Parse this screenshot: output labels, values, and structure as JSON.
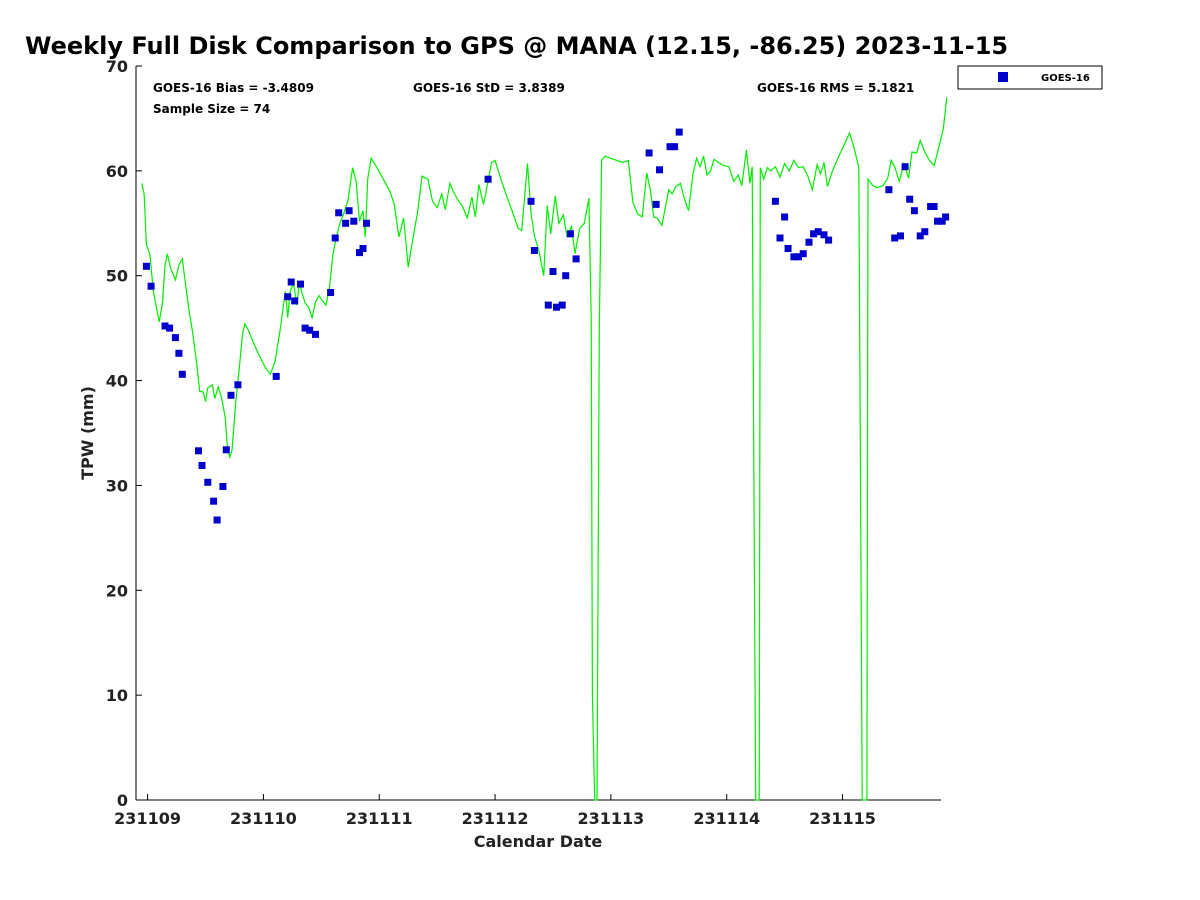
{
  "chart_data": {
    "type": "scatter",
    "title": "Weekly Full Disk Comparison to GPS @ MANA (12.15, -86.25) 2023-11-15",
    "xlabel": "Calendar Date",
    "ylabel": "TPW (mm)",
    "xlim": [
      -0.1,
      6.85
    ],
    "ylim": [
      0,
      70
    ],
    "x_ticks": [
      {
        "value": 0,
        "label": "231109"
      },
      {
        "value": 1,
        "label": "231110"
      },
      {
        "value": 2,
        "label": "231111"
      },
      {
        "value": 3,
        "label": "231112"
      },
      {
        "value": 4,
        "label": "231113"
      },
      {
        "value": 5,
        "label": "231114"
      },
      {
        "value": 6,
        "label": "231115"
      }
    ],
    "y_ticks": [
      0,
      10,
      20,
      30,
      40,
      50,
      60,
      70
    ],
    "grid": false,
    "legend": {
      "position": "top-right",
      "entries": [
        "GOES-16"
      ]
    },
    "stats": {
      "bias": "GOES-16 Bias = -3.4809",
      "std": "GOES-16 StD = 3.8389",
      "rms": "GOES-16 RMS = 5.1821",
      "sample": "Sample Size = 74"
    },
    "series": [
      {
        "name": "GOES-16",
        "kind": "scatter",
        "color": "#0000cc",
        "points": [
          [
            -0.01,
            50.9
          ],
          [
            0.03,
            49.0
          ],
          [
            0.15,
            45.2
          ],
          [
            0.19,
            45.0
          ],
          [
            0.24,
            44.1
          ],
          [
            0.27,
            42.6
          ],
          [
            0.3,
            40.6
          ],
          [
            0.44,
            33.3
          ],
          [
            0.47,
            31.9
          ],
          [
            0.52,
            30.3
          ],
          [
            0.57,
            28.5
          ],
          [
            0.6,
            26.7
          ],
          [
            0.65,
            29.9
          ],
          [
            0.68,
            33.4
          ],
          [
            0.72,
            38.6
          ],
          [
            0.78,
            39.6
          ],
          [
            1.11,
            40.4
          ],
          [
            1.21,
            48.0
          ],
          [
            1.24,
            49.4
          ],
          [
            1.27,
            47.6
          ],
          [
            1.32,
            49.2
          ],
          [
            1.36,
            45.0
          ],
          [
            1.4,
            44.8
          ],
          [
            1.45,
            44.4
          ],
          [
            1.58,
            48.4
          ],
          [
            1.62,
            53.6
          ],
          [
            1.65,
            56.0
          ],
          [
            1.71,
            55.0
          ],
          [
            1.74,
            56.2
          ],
          [
            1.78,
            55.2
          ],
          [
            1.83,
            52.2
          ],
          [
            1.86,
            52.6
          ],
          [
            1.89,
            55.0
          ],
          [
            2.94,
            59.2
          ],
          [
            3.31,
            57.1
          ],
          [
            3.34,
            52.4
          ],
          [
            3.46,
            47.2
          ],
          [
            3.5,
            50.4
          ],
          [
            3.53,
            47.0
          ],
          [
            3.58,
            47.2
          ],
          [
            3.61,
            50.0
          ],
          [
            3.65,
            54.0
          ],
          [
            3.7,
            51.6
          ],
          [
            4.33,
            61.7
          ],
          [
            4.39,
            56.8
          ],
          [
            4.42,
            60.1
          ],
          [
            4.51,
            62.3
          ],
          [
            4.55,
            62.3
          ],
          [
            4.59,
            63.7
          ],
          [
            5.42,
            57.1
          ],
          [
            5.46,
            53.6
          ],
          [
            5.5,
            55.6
          ],
          [
            5.53,
            52.6
          ],
          [
            5.58,
            51.8
          ],
          [
            5.62,
            51.8
          ],
          [
            5.66,
            52.1
          ],
          [
            5.71,
            53.2
          ],
          [
            5.75,
            54.0
          ],
          [
            5.79,
            54.2
          ],
          [
            5.84,
            53.9
          ],
          [
            5.88,
            53.4
          ],
          [
            6.4,
            58.2
          ],
          [
            6.45,
            53.6
          ],
          [
            6.5,
            53.8
          ],
          [
            6.54,
            60.4
          ],
          [
            6.58,
            57.3
          ],
          [
            6.62,
            56.2
          ],
          [
            6.67,
            53.8
          ],
          [
            6.71,
            54.2
          ],
          [
            6.76,
            56.6
          ],
          [
            6.79,
            56.6
          ],
          [
            6.82,
            55.2
          ],
          [
            6.86,
            55.2
          ],
          [
            6.89,
            55.6
          ]
        ]
      },
      {
        "name": "",
        "kind": "line",
        "color": "#00ee00",
        "points": [
          [
            -0.05,
            58.8
          ],
          [
            -0.03,
            57.8
          ],
          [
            -0.01,
            53.0
          ],
          [
            0.02,
            52.0
          ],
          [
            0.05,
            48.5
          ],
          [
            0.08,
            46.8
          ],
          [
            0.1,
            45.6
          ],
          [
            0.13,
            47.5
          ],
          [
            0.15,
            51.0
          ],
          [
            0.17,
            52.1
          ],
          [
            0.2,
            50.7
          ],
          [
            0.24,
            49.6
          ],
          [
            0.27,
            51.0
          ],
          [
            0.3,
            51.6
          ],
          [
            0.33,
            49.0
          ],
          [
            0.36,
            46.5
          ],
          [
            0.39,
            44.5
          ],
          [
            0.42,
            42.0
          ],
          [
            0.45,
            39.0
          ],
          [
            0.48,
            38.9
          ],
          [
            0.5,
            38.0
          ],
          [
            0.52,
            39.3
          ],
          [
            0.56,
            39.6
          ],
          [
            0.58,
            38.3
          ],
          [
            0.61,
            39.4
          ],
          [
            0.64,
            38.3
          ],
          [
            0.67,
            36.5
          ],
          [
            0.69,
            33.5
          ],
          [
            0.71,
            32.7
          ],
          [
            0.73,
            33.4
          ],
          [
            0.76,
            37.8
          ],
          [
            0.79,
            41.0
          ],
          [
            0.82,
            44.5
          ],
          [
            0.84,
            45.4
          ],
          [
            0.87,
            44.8
          ],
          [
            0.9,
            44.0
          ],
          [
            0.93,
            43.2
          ],
          [
            0.96,
            42.5
          ],
          [
            0.99,
            41.8
          ],
          [
            1.02,
            41.2
          ],
          [
            1.06,
            40.6
          ],
          [
            1.1,
            41.8
          ],
          [
            1.14,
            44.5
          ],
          [
            1.19,
            48.5
          ],
          [
            1.21,
            46.0
          ],
          [
            1.23,
            48.5
          ],
          [
            1.26,
            49.3
          ],
          [
            1.29,
            47.2
          ],
          [
            1.31,
            49.5
          ],
          [
            1.33,
            48.5
          ],
          [
            1.36,
            47.4
          ],
          [
            1.39,
            47.0
          ],
          [
            1.42,
            46.0
          ],
          [
            1.45,
            47.5
          ],
          [
            1.48,
            48.1
          ],
          [
            1.51,
            47.6
          ],
          [
            1.54,
            47.2
          ],
          [
            1.57,
            48.8
          ],
          [
            1.6,
            52.0
          ],
          [
            1.63,
            53.7
          ],
          [
            1.66,
            55.0
          ],
          [
            1.69,
            55.8
          ],
          [
            1.73,
            57.2
          ],
          [
            1.77,
            60.3
          ],
          [
            1.8,
            59.0
          ],
          [
            1.83,
            55.2
          ],
          [
            1.86,
            56.2
          ],
          [
            1.88,
            53.7
          ],
          [
            1.9,
            59.2
          ],
          [
            1.93,
            61.2
          ],
          [
            1.97,
            60.5
          ],
          [
            2.03,
            59.3
          ],
          [
            2.09,
            58.1
          ],
          [
            2.13,
            56.8
          ],
          [
            2.17,
            53.7
          ],
          [
            2.21,
            55.5
          ],
          [
            2.25,
            50.8
          ],
          [
            2.29,
            53.5
          ],
          [
            2.33,
            56.0
          ],
          [
            2.37,
            59.5
          ],
          [
            2.42,
            59.2
          ],
          [
            2.46,
            57.1
          ],
          [
            2.5,
            56.5
          ],
          [
            2.54,
            57.8
          ],
          [
            2.57,
            56.3
          ],
          [
            2.61,
            58.8
          ],
          [
            2.64,
            58.0
          ],
          [
            2.68,
            57.2
          ],
          [
            2.72,
            56.6
          ],
          [
            2.76,
            55.5
          ],
          [
            2.8,
            57.5
          ],
          [
            2.83,
            55.6
          ],
          [
            2.86,
            58.7
          ],
          [
            2.9,
            56.8
          ],
          [
            2.94,
            59.0
          ],
          [
            2.97,
            60.8
          ],
          [
            3.0,
            61.0
          ],
          [
            3.05,
            59.2
          ],
          [
            3.1,
            57.6
          ],
          [
            3.15,
            56.1
          ],
          [
            3.2,
            54.5
          ],
          [
            3.23,
            54.3
          ],
          [
            3.28,
            60.7
          ],
          [
            3.31,
            56.0
          ],
          [
            3.34,
            53.8
          ],
          [
            3.38,
            52.3
          ],
          [
            3.42,
            50.0
          ],
          [
            3.45,
            56.7
          ],
          [
            3.48,
            54.0
          ],
          [
            3.52,
            57.6
          ],
          [
            3.55,
            55.0
          ],
          [
            3.59,
            55.8
          ],
          [
            3.62,
            53.8
          ],
          [
            3.66,
            54.7
          ],
          [
            3.69,
            52.1
          ],
          [
            3.73,
            54.5
          ],
          [
            3.77,
            55.0
          ],
          [
            3.81,
            57.4
          ],
          [
            3.83,
            46.0
          ],
          [
            3.84,
            10.0
          ],
          [
            3.86,
            0.0
          ],
          [
            3.88,
            0.0
          ],
          [
            3.9,
            45.0
          ],
          [
            3.92,
            61.0
          ],
          [
            3.95,
            61.4
          ],
          [
            4.0,
            61.2
          ],
          [
            4.05,
            61.0
          ],
          [
            4.1,
            60.8
          ],
          [
            4.15,
            61.0
          ],
          [
            4.19,
            57.0
          ],
          [
            4.23,
            55.9
          ],
          [
            4.27,
            55.6
          ],
          [
            4.31,
            59.8
          ],
          [
            4.34,
            58.2
          ],
          [
            4.37,
            55.6
          ],
          [
            4.4,
            55.5
          ],
          [
            4.44,
            54.8
          ],
          [
            4.47,
            56.5
          ],
          [
            4.5,
            58.2
          ],
          [
            4.53,
            57.8
          ],
          [
            4.56,
            58.5
          ],
          [
            4.6,
            58.8
          ],
          [
            4.63,
            57.5
          ],
          [
            4.67,
            56.2
          ],
          [
            4.71,
            59.8
          ],
          [
            4.74,
            61.2
          ],
          [
            4.77,
            60.4
          ],
          [
            4.8,
            61.4
          ],
          [
            4.83,
            59.6
          ],
          [
            4.86,
            60.0
          ],
          [
            4.89,
            61.1
          ],
          [
            4.93,
            60.8
          ],
          [
            4.97,
            60.5
          ],
          [
            5.02,
            60.4
          ],
          [
            5.06,
            59.0
          ],
          [
            5.1,
            59.6
          ],
          [
            5.13,
            58.6
          ],
          [
            5.17,
            62.0
          ],
          [
            5.2,
            58.8
          ],
          [
            5.22,
            60.4
          ],
          [
            5.24,
            20.0
          ],
          [
            5.25,
            0.0
          ],
          [
            5.28,
            0.0
          ],
          [
            5.29,
            60.3
          ],
          [
            5.32,
            59.2
          ],
          [
            5.35,
            60.3
          ],
          [
            5.38,
            60.0
          ],
          [
            5.42,
            60.4
          ],
          [
            5.46,
            59.4
          ],
          [
            5.5,
            60.7
          ],
          [
            5.54,
            60.0
          ],
          [
            5.58,
            61.0
          ],
          [
            5.62,
            60.3
          ],
          [
            5.66,
            60.4
          ],
          [
            5.7,
            59.5
          ],
          [
            5.74,
            58.2
          ],
          [
            5.78,
            60.6
          ],
          [
            5.81,
            59.7
          ],
          [
            5.84,
            60.8
          ],
          [
            5.87,
            58.5
          ],
          [
            5.91,
            59.9
          ],
          [
            5.96,
            61.2
          ],
          [
            6.01,
            62.4
          ],
          [
            6.06,
            63.6
          ],
          [
            6.1,
            62.2
          ],
          [
            6.14,
            60.3
          ],
          [
            6.16,
            20.0
          ],
          [
            6.17,
            0.0
          ],
          [
            6.21,
            0.0
          ],
          [
            6.22,
            59.2
          ],
          [
            6.26,
            58.6
          ],
          [
            6.3,
            58.4
          ],
          [
            6.35,
            58.6
          ],
          [
            6.39,
            59.3
          ],
          [
            6.42,
            61.0
          ],
          [
            6.45,
            60.4
          ],
          [
            6.49,
            59.0
          ],
          [
            6.53,
            60.7
          ],
          [
            6.57,
            59.3
          ],
          [
            6.6,
            61.8
          ],
          [
            6.64,
            61.7
          ],
          [
            6.67,
            62.9
          ],
          [
            6.71,
            61.8
          ],
          [
            6.75,
            61.0
          ],
          [
            6.79,
            60.5
          ],
          [
            6.83,
            62.2
          ],
          [
            6.87,
            64.0
          ],
          [
            6.9,
            67.0
          ]
        ]
      }
    ]
  }
}
